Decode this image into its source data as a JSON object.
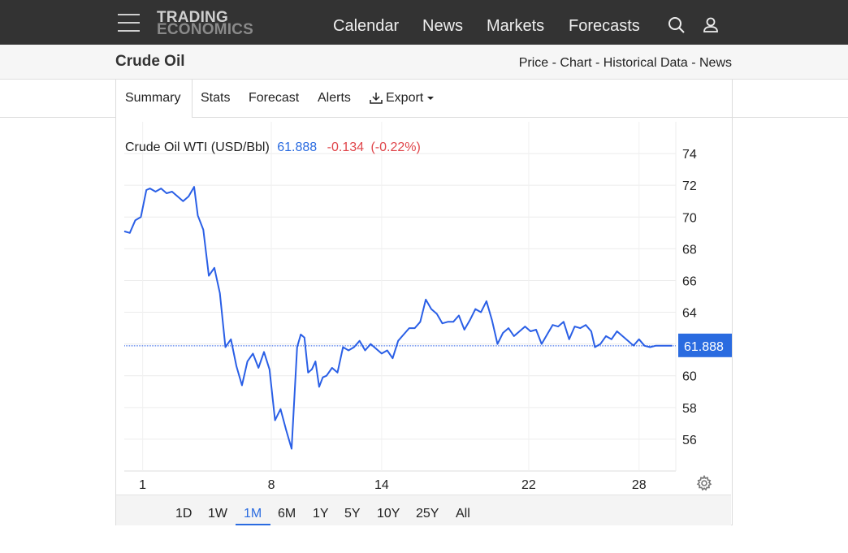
{
  "header": {
    "logo_line1": "TRADING",
    "logo_line2": "ECONOMICS",
    "nav": [
      "Calendar",
      "News",
      "Markets",
      "Forecasts"
    ]
  },
  "subheader": {
    "title": "Crude Oil",
    "breadcrumbs": "Price - Chart - Historical Data - News"
  },
  "tabs": {
    "summary": "Summary",
    "stats": "Stats",
    "forecast": "Forecast",
    "alerts": "Alerts",
    "export": "Export"
  },
  "ranges": [
    "1D",
    "1W",
    "1M",
    "6M",
    "1Y",
    "5Y",
    "10Y",
    "25Y",
    "All"
  ],
  "active_range": "1M",
  "colors": {
    "line": "#2a5fe6",
    "negative": "#e0464b",
    "accent": "#2a6be0",
    "topbar": "#333333"
  },
  "chart_data": {
    "type": "line",
    "legend_label": "Crude Oil WTI (USD/Bbl)",
    "last_value": "61.888",
    "change": "-0.134",
    "change_percent": "(-0.22%)",
    "ylim": [
      54,
      76
    ],
    "y_ticks": [
      56,
      58,
      60,
      62,
      64,
      66,
      68,
      70,
      72,
      74
    ],
    "xlim": [
      0,
      30
    ],
    "x_ticks": [
      {
        "value": 1,
        "label": "1"
      },
      {
        "value": 8,
        "label": "8"
      },
      {
        "value": 14,
        "label": "14"
      },
      {
        "value": 22,
        "label": "22"
      },
      {
        "value": 28,
        "label": "28"
      }
    ],
    "current_price": 61.888,
    "series": [
      {
        "x": [
          0.0,
          0.3,
          0.6,
          0.9,
          1.2,
          1.4,
          1.7,
          2.0,
          2.3,
          2.6,
          2.9,
          3.2,
          3.5,
          3.8,
          4.0,
          4.3,
          4.6,
          4.9,
          5.2,
          5.5,
          5.8,
          6.1,
          6.4,
          6.7,
          7.0,
          7.3,
          7.6,
          7.9,
          8.2,
          8.5,
          8.8,
          9.1,
          9.4,
          9.6,
          9.8,
          10.0,
          10.2,
          10.4,
          10.6,
          10.8,
          11.0,
          11.3,
          11.6,
          11.9,
          12.2,
          12.5,
          12.8,
          13.1,
          13.4,
          13.7,
          14.0,
          14.3,
          14.6,
          14.9,
          15.2,
          15.5,
          15.8,
          16.1,
          16.4,
          16.7,
          17.0,
          17.3,
          17.6,
          17.9,
          18.2,
          18.5,
          18.8,
          19.1,
          19.4,
          19.7,
          20.0,
          20.3,
          20.6,
          20.9,
          21.2,
          21.5,
          21.8,
          22.1,
          22.4,
          22.7,
          23.0,
          23.3,
          23.6,
          23.9,
          24.2,
          24.5,
          24.8,
          25.1,
          25.4,
          25.6,
          25.9,
          26.2,
          26.5,
          26.8,
          27.1,
          27.4,
          27.7,
          28.0,
          28.3,
          28.6,
          28.9,
          29.2,
          29.4,
          29.6,
          29.8
        ],
        "y": [
          69.1,
          69.0,
          69.8,
          70.0,
          71.7,
          71.8,
          71.6,
          71.8,
          71.5,
          71.6,
          71.3,
          71.0,
          71.3,
          71.9,
          70.1,
          69.2,
          66.3,
          66.8,
          65.2,
          61.8,
          62.3,
          60.6,
          59.4,
          60.9,
          61.4,
          60.5,
          61.5,
          60.4,
          57.2,
          57.9,
          56.6,
          55.4,
          61.8,
          62.6,
          62.4,
          60.2,
          60.4,
          60.9,
          59.3,
          59.9,
          60.0,
          60.5,
          60.2,
          61.8,
          61.6,
          61.8,
          62.2,
          61.6,
          62.0,
          61.7,
          61.4,
          61.6,
          61.1,
          62.2,
          62.6,
          63.0,
          63.0,
          63.4,
          64.8,
          64.2,
          63.9,
          63.3,
          63.4,
          63.4,
          63.8,
          62.9,
          63.5,
          64.2,
          64.0,
          64.7,
          63.5,
          62.0,
          62.7,
          63.0,
          62.5,
          62.8,
          63.1,
          62.8,
          62.9,
          62.0,
          62.6,
          63.2,
          63.1,
          63.4,
          62.3,
          63.1,
          63.0,
          63.2,
          62.8,
          61.8,
          62.0,
          62.5,
          62.3,
          62.8,
          62.5,
          62.2,
          61.9,
          62.3,
          61.888,
          61.8,
          61.888,
          61.888,
          61.888,
          61.888,
          61.888
        ]
      }
    ]
  }
}
